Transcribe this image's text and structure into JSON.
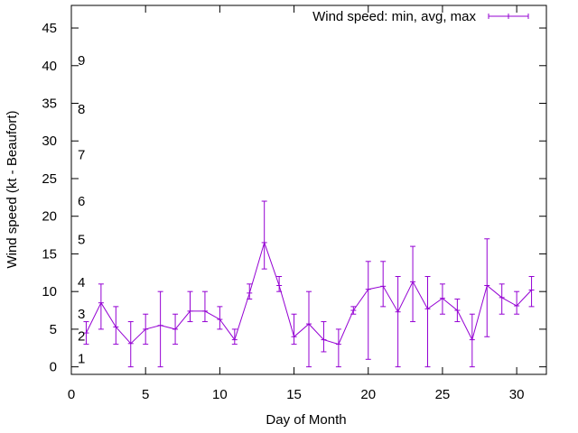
{
  "chart_data": {
    "type": "line",
    "title": "",
    "xlabel": "Day of Month",
    "ylabel": "Wind speed (kt - Beaufort)",
    "xlim": [
      0,
      32
    ],
    "ylim": [
      -1,
      48
    ],
    "xticks": [
      0,
      5,
      10,
      15,
      20,
      25,
      30
    ],
    "yticks": [
      0,
      5,
      10,
      15,
      20,
      25,
      30,
      35,
      40,
      45
    ],
    "legend": {
      "position": "top-right",
      "label": "Wind speed: min, avg, max"
    },
    "series": [
      {
        "name": "Wind speed: min, avg, max",
        "color": "#9400d3",
        "x": [
          1,
          2,
          3,
          4,
          5,
          6,
          7,
          8,
          9,
          10,
          11,
          12,
          13,
          14,
          15,
          16,
          17,
          18,
          19,
          20,
          21,
          22,
          23,
          24,
          25,
          26,
          27,
          28,
          29,
          30,
          31
        ],
        "avg": [
          4.5,
          8.5,
          5.3,
          3.1,
          5.0,
          5.5,
          5.0,
          7.4,
          7.4,
          6.3,
          3.6,
          9.8,
          16.5,
          10.8,
          4.0,
          5.7,
          3.6,
          3.0,
          7.5,
          10.3,
          10.7,
          7.3,
          11.3,
          7.7,
          9.1,
          7.5,
          3.6,
          10.8,
          9.2,
          8.1,
          10.2
        ],
        "min": [
          3.0,
          5.0,
          3.0,
          0.0,
          3.0,
          0.0,
          3.0,
          6.0,
          6.0,
          5.0,
          3.0,
          9.0,
          13.0,
          10.0,
          3.0,
          0.0,
          2.0,
          0.0,
          7.0,
          1.0,
          8.0,
          0.0,
          6.0,
          0.0,
          7.0,
          6.0,
          0.0,
          4.0,
          7.0,
          7.0,
          8.0
        ],
        "max": [
          6.0,
          11.0,
          8.0,
          6.0,
          7.0,
          10.0,
          7.0,
          10.0,
          10.0,
          8.0,
          5.0,
          11.0,
          22.0,
          12.0,
          7.0,
          10.0,
          6.0,
          5.0,
          8.0,
          14.0,
          14.0,
          12.0,
          16.0,
          12.0,
          11.0,
          9.0,
          7.0,
          17.0,
          11.0,
          10.0,
          12.0
        ]
      }
    ],
    "beaufort_labels": [
      {
        "label": "1",
        "y": 1.1
      },
      {
        "label": "2",
        "y": 4.1
      },
      {
        "label": "3",
        "y": 7.0
      },
      {
        "label": "4",
        "y": 11.2
      },
      {
        "label": "5",
        "y": 16.9
      },
      {
        "label": "6",
        "y": 22.0
      },
      {
        "label": "7",
        "y": 28.2
      },
      {
        "label": "8",
        "y": 34.2
      },
      {
        "label": "9",
        "y": 40.7
      }
    ]
  }
}
